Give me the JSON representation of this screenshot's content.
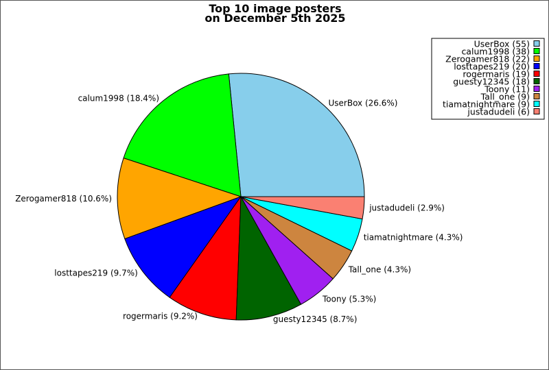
{
  "chart_data": {
    "type": "pie",
    "title_line1": "Top 10 image posters",
    "title_line2": "on December 5th 2025",
    "slices": [
      {
        "name": "UserBox",
        "value": 55,
        "percent": 26.6,
        "label": "UserBox (26.6%)",
        "legend": "UserBox (55)",
        "color": "#87ceeb"
      },
      {
        "name": "calum1998",
        "value": 38,
        "percent": 18.4,
        "label": "calum1998 (18.4%)",
        "legend": "calum1998 (38)",
        "color": "#00ff00"
      },
      {
        "name": "Zerogamer818",
        "value": 22,
        "percent": 10.6,
        "label": "Zerogamer818 (10.6%)",
        "legend": "Zerogamer818 (22)",
        "color": "#ffa500"
      },
      {
        "name": "losttapes219",
        "value": 20,
        "percent": 9.7,
        "label": "losttapes219 (9.7%)",
        "legend": "losttapes219 (20)",
        "color": "#0000ff"
      },
      {
        "name": "rogermaris",
        "value": 19,
        "percent": 9.2,
        "label": "rogermaris (9.2%)",
        "legend": "rogermaris (19)",
        "color": "#ff0000"
      },
      {
        "name": "guesty12345",
        "value": 18,
        "percent": 8.7,
        "label": "guesty12345 (8.7%)",
        "legend": "guesty12345 (18)",
        "color": "#006400"
      },
      {
        "name": "Toony",
        "value": 11,
        "percent": 5.3,
        "label": "Toony (5.3%)",
        "legend": "Toony (11)",
        "color": "#a020f0"
      },
      {
        "name": "Tall_one",
        "value": 9,
        "percent": 4.3,
        "label": "Tall_one (4.3%)",
        "legend": "Tall_one (9)",
        "color": "#cd853f"
      },
      {
        "name": "tiamatnightmare",
        "value": 9,
        "percent": 4.3,
        "label": "tiamatnightmare (4.3%)",
        "legend": "tiamatnightmare (9)",
        "color": "#00ffff"
      },
      {
        "name": "justadudeli",
        "value": 6,
        "percent": 2.9,
        "label": "justadudeli (2.9%)",
        "legend": "justadudeli (6)",
        "color": "#fa8072"
      }
    ],
    "legend_position": "top-right"
  }
}
